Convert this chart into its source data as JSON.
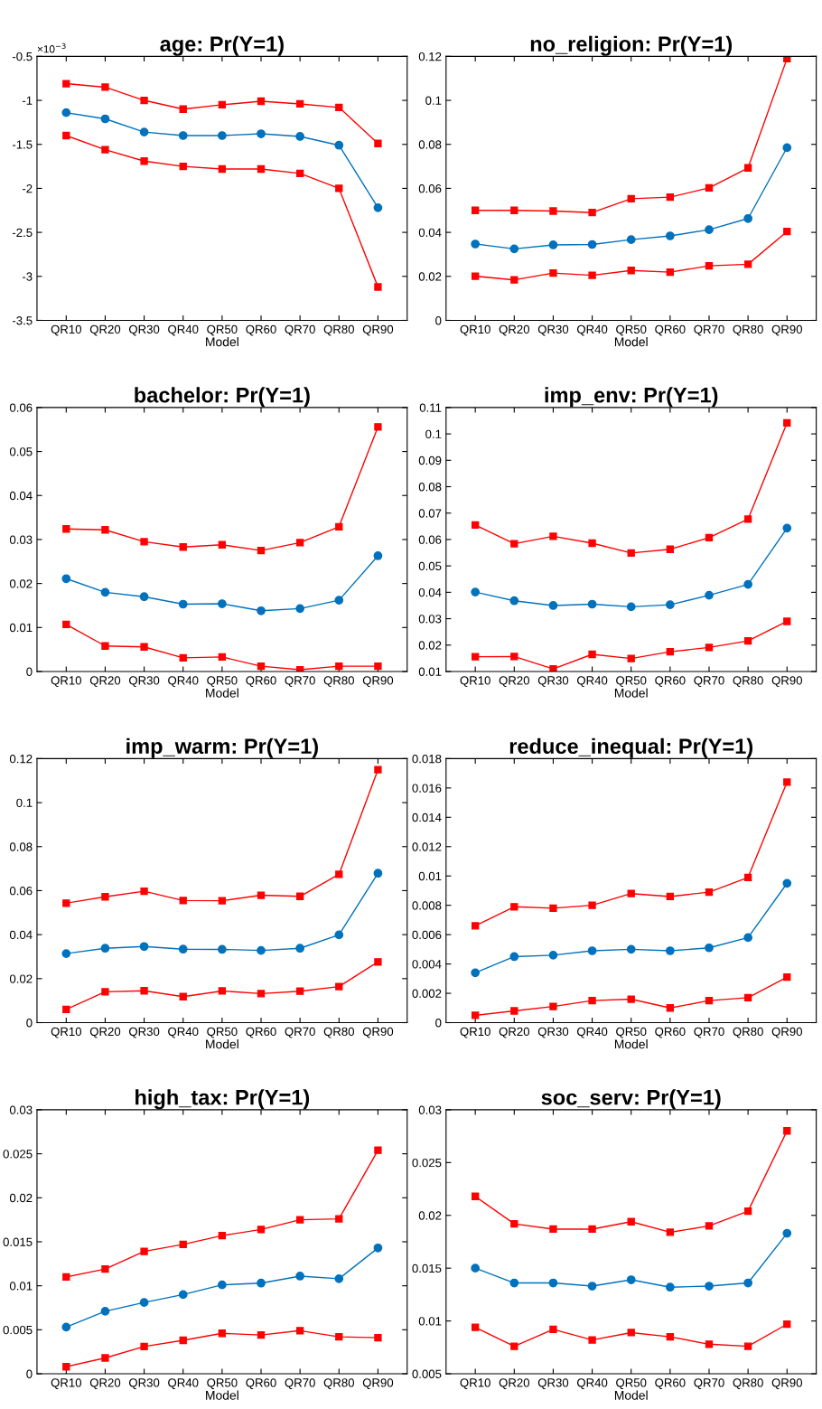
{
  "chart_data": [
    {
      "type": "line",
      "title": "age: Pr(Y=1)",
      "xlabel": "Model",
      "categories": [
        "QR10",
        "QR20",
        "QR30",
        "QR40",
        "QR50",
        "QR60",
        "QR70",
        "QR80",
        "QR90"
      ],
      "ylim": [
        -3.5,
        -0.5
      ],
      "yticks": [
        -3.5,
        -3,
        -2.5,
        -2,
        -1.5,
        -1,
        -0.5
      ],
      "annotations": [
        "×10$^{−3}$"
      ],
      "series": [
        {
          "color": "#ff0000",
          "marker": "square",
          "values": [
            -0.81,
            -0.85,
            -1.0,
            -1.1,
            -1.05,
            -1.01,
            -1.04,
            -1.08,
            -1.49
          ]
        },
        {
          "color": "#0072bd",
          "marker": "circle",
          "values": [
            -1.14,
            -1.21,
            -1.36,
            -1.4,
            -1.4,
            -1.38,
            -1.41,
            -1.51,
            -2.22
          ]
        },
        {
          "color": "#ff0000",
          "marker": "square",
          "values": [
            -1.4,
            -1.56,
            -1.69,
            -1.75,
            -1.78,
            -1.78,
            -1.83,
            -2.0,
            -3.12
          ]
        }
      ]
    },
    {
      "type": "line",
      "title": "no_religion: Pr(Y=1)",
      "xlabel": "Model",
      "categories": [
        "QR10",
        "QR20",
        "QR30",
        "QR40",
        "QR50",
        "QR60",
        "QR70",
        "QR80",
        "QR90"
      ],
      "ylim": [
        0,
        0.12
      ],
      "yticks": [
        0,
        0.02,
        0.04,
        0.06,
        0.08,
        0.1,
        0.12
      ],
      "series": [
        {
          "color": "#ff0000",
          "marker": "square",
          "values": [
            0.05,
            0.05,
            0.0497,
            0.049,
            0.0553,
            0.056,
            0.0602,
            0.0693,
            0.119
          ]
        },
        {
          "color": "#0072bd",
          "marker": "circle",
          "values": [
            0.0347,
            0.0325,
            0.0343,
            0.0345,
            0.0367,
            0.0384,
            0.0412,
            0.0463,
            0.0785
          ]
        },
        {
          "color": "#ff0000",
          "marker": "square",
          "values": [
            0.0201,
            0.0184,
            0.0215,
            0.0205,
            0.0227,
            0.0219,
            0.0248,
            0.0255,
            0.0404
          ]
        }
      ]
    },
    {
      "type": "line",
      "title": "bachelor: Pr(Y=1)",
      "xlabel": "Model",
      "categories": [
        "QR10",
        "QR20",
        "QR30",
        "QR40",
        "QR50",
        "QR60",
        "QR70",
        "QR80",
        "QR90"
      ],
      "ylim": [
        0,
        0.06
      ],
      "yticks": [
        0,
        0.01,
        0.02,
        0.03,
        0.04,
        0.05,
        0.06
      ],
      "series": [
        {
          "color": "#ff0000",
          "marker": "square",
          "values": [
            0.0324,
            0.0322,
            0.0295,
            0.0283,
            0.0288,
            0.0275,
            0.0293,
            0.0329,
            0.0556
          ]
        },
        {
          "color": "#0072bd",
          "marker": "circle",
          "values": [
            0.0211,
            0.018,
            0.017,
            0.0153,
            0.0154,
            0.0138,
            0.0143,
            0.0162,
            0.0263
          ]
        },
        {
          "color": "#ff0000",
          "marker": "square",
          "values": [
            0.0107,
            0.0058,
            0.0056,
            0.0031,
            0.0033,
            0.0012,
            0.0004,
            0.0012,
            0.0012
          ]
        }
      ]
    },
    {
      "type": "line",
      "title": "imp_env: Pr(Y=1)",
      "xlabel": "Model",
      "categories": [
        "QR10",
        "QR20",
        "QR30",
        "QR40",
        "QR50",
        "QR60",
        "QR70",
        "QR80",
        "QR90"
      ],
      "ylim": [
        0.01,
        0.11
      ],
      "yticks": [
        0.01,
        0.02,
        0.03,
        0.04,
        0.05,
        0.06,
        0.07,
        0.08,
        0.09,
        0.1,
        0.11
      ],
      "series": [
        {
          "color": "#ff0000",
          "marker": "square",
          "values": [
            0.0655,
            0.0584,
            0.0612,
            0.0586,
            0.0549,
            0.0563,
            0.0607,
            0.0677,
            0.1042
          ]
        },
        {
          "color": "#0072bd",
          "marker": "circle",
          "values": [
            0.0401,
            0.0368,
            0.035,
            0.0355,
            0.0345,
            0.0353,
            0.0389,
            0.043,
            0.0643
          ]
        },
        {
          "color": "#ff0000",
          "marker": "square",
          "values": [
            0.0156,
            0.0157,
            0.011,
            0.0165,
            0.0149,
            0.0175,
            0.0191,
            0.0216,
            0.029
          ]
        }
      ]
    },
    {
      "type": "line",
      "title": "imp_warm: Pr(Y=1)",
      "xlabel": "Model",
      "categories": [
        "QR10",
        "QR20",
        "QR30",
        "QR40",
        "QR50",
        "QR60",
        "QR70",
        "QR80",
        "QR90"
      ],
      "ylim": [
        0,
        0.12
      ],
      "yticks": [
        0,
        0.02,
        0.04,
        0.06,
        0.08,
        0.1,
        0.12
      ],
      "series": [
        {
          "color": "#ff0000",
          "marker": "square",
          "values": [
            0.0543,
            0.0572,
            0.0597,
            0.0555,
            0.0554,
            0.0579,
            0.0574,
            0.0674,
            0.115
          ]
        },
        {
          "color": "#0072bd",
          "marker": "circle",
          "values": [
            0.0314,
            0.0338,
            0.0346,
            0.0334,
            0.0333,
            0.0328,
            0.0338,
            0.0399,
            0.0679
          ]
        },
        {
          "color": "#ff0000",
          "marker": "square",
          "values": [
            0.006,
            0.014,
            0.0145,
            0.0118,
            0.0144,
            0.0132,
            0.0143,
            0.0164,
            0.0276
          ]
        }
      ]
    },
    {
      "type": "line",
      "title": "reduce_inequal: Pr(Y=1)",
      "xlabel": "Model",
      "categories": [
        "QR10",
        "QR20",
        "QR30",
        "QR40",
        "QR50",
        "QR60",
        "QR70",
        "QR80",
        "QR90"
      ],
      "ylim": [
        0,
        0.018
      ],
      "yticks": [
        0,
        0.002,
        0.004,
        0.006,
        0.008,
        0.01,
        0.012,
        0.014,
        0.016,
        0.018
      ],
      "series": [
        {
          "color": "#ff0000",
          "marker": "square",
          "values": [
            0.0066,
            0.0079,
            0.0078,
            0.008,
            0.0088,
            0.0086,
            0.0089,
            0.0099,
            0.0164
          ]
        },
        {
          "color": "#0072bd",
          "marker": "circle",
          "values": [
            0.0034,
            0.0045,
            0.0046,
            0.0049,
            0.005,
            0.0049,
            0.0051,
            0.0058,
            0.0095
          ]
        },
        {
          "color": "#ff0000",
          "marker": "square",
          "values": [
            0.0005,
            0.0008,
            0.0011,
            0.0015,
            0.0016,
            0.001,
            0.0015,
            0.0017,
            0.0031
          ]
        }
      ]
    },
    {
      "type": "line",
      "title": "high_tax: Pr(Y=1)",
      "xlabel": "Model",
      "categories": [
        "QR10",
        "QR20",
        "QR30",
        "QR40",
        "QR50",
        "QR60",
        "QR70",
        "QR80",
        "QR90"
      ],
      "ylim": [
        0,
        0.03
      ],
      "yticks": [
        0,
        0.005,
        0.01,
        0.015,
        0.02,
        0.025,
        0.03
      ],
      "series": [
        {
          "color": "#ff0000",
          "marker": "square",
          "values": [
            0.011,
            0.0119,
            0.0139,
            0.0147,
            0.0157,
            0.0164,
            0.0175,
            0.0176,
            0.0254
          ]
        },
        {
          "color": "#0072bd",
          "marker": "circle",
          "values": [
            0.0053,
            0.0071,
            0.0081,
            0.009,
            0.0101,
            0.0103,
            0.0111,
            0.0108,
            0.0143
          ]
        },
        {
          "color": "#ff0000",
          "marker": "square",
          "values": [
            0.0008,
            0.0018,
            0.0031,
            0.0038,
            0.0046,
            0.0044,
            0.0049,
            0.0042,
            0.0041
          ]
        }
      ]
    },
    {
      "type": "line",
      "title": "soc_serv: Pr(Y=1)",
      "xlabel": "Model",
      "categories": [
        "QR10",
        "QR20",
        "QR30",
        "QR40",
        "QR50",
        "QR60",
        "QR70",
        "QR80",
        "QR90"
      ],
      "ylim": [
        0.005,
        0.03
      ],
      "yticks": [
        0.005,
        0.01,
        0.015,
        0.02,
        0.025,
        0.03
      ],
      "series": [
        {
          "color": "#ff0000",
          "marker": "square",
          "values": [
            0.0218,
            0.0192,
            0.0187,
            0.0187,
            0.0194,
            0.0184,
            0.019,
            0.0204,
            0.028
          ]
        },
        {
          "color": "#0072bd",
          "marker": "circle",
          "values": [
            0.015,
            0.0136,
            0.0136,
            0.0133,
            0.0139,
            0.0132,
            0.0133,
            0.0136,
            0.0183
          ]
        },
        {
          "color": "#ff0000",
          "marker": "square",
          "values": [
            0.0094,
            0.0076,
            0.0092,
            0.0082,
            0.0089,
            0.0085,
            0.0078,
            0.0076,
            0.0097
          ]
        }
      ]
    }
  ]
}
